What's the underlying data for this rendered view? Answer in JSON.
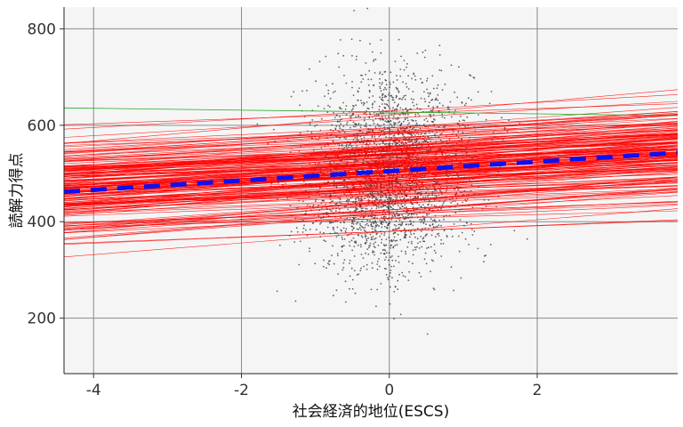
{
  "chart_data": {
    "type": "scatter",
    "xlabel": "社会経済的地位(ESCS)",
    "ylabel": "読解力得点",
    "xlim": [
      -4.4,
      3.9
    ],
    "ylim": [
      85,
      845
    ],
    "x_ticks": [
      -4,
      -2,
      0,
      2
    ],
    "x_tick_labels": [
      "-4",
      "-2",
      "0",
      "2"
    ],
    "y_ticks": [
      200,
      400,
      600,
      800
    ],
    "y_tick_labels": [
      "200",
      "400",
      "600",
      "800"
    ],
    "grid": true,
    "legend": "none",
    "background": "#f5f5f5",
    "scatter": {
      "approx_n": 3000,
      "center_x": 0.0,
      "sd_x": 0.55,
      "center_y": 500,
      "sd_y": 95,
      "color": "#333333"
    },
    "mean_regression_line": {
      "style": "dashed",
      "color": "#1010ee",
      "x": [
        -4.4,
        3.9
      ],
      "y": [
        462,
        543
      ]
    },
    "group_regression_lines": {
      "color": "#ff0000",
      "approx_count": 180,
      "intercept_range": [
        380,
        630
      ],
      "slope_range": [
        4,
        14
      ]
    },
    "highlight_line": {
      "color": "#22aa22",
      "x": [
        -4.4,
        3.9
      ],
      "y": [
        636,
        620
      ]
    }
  }
}
